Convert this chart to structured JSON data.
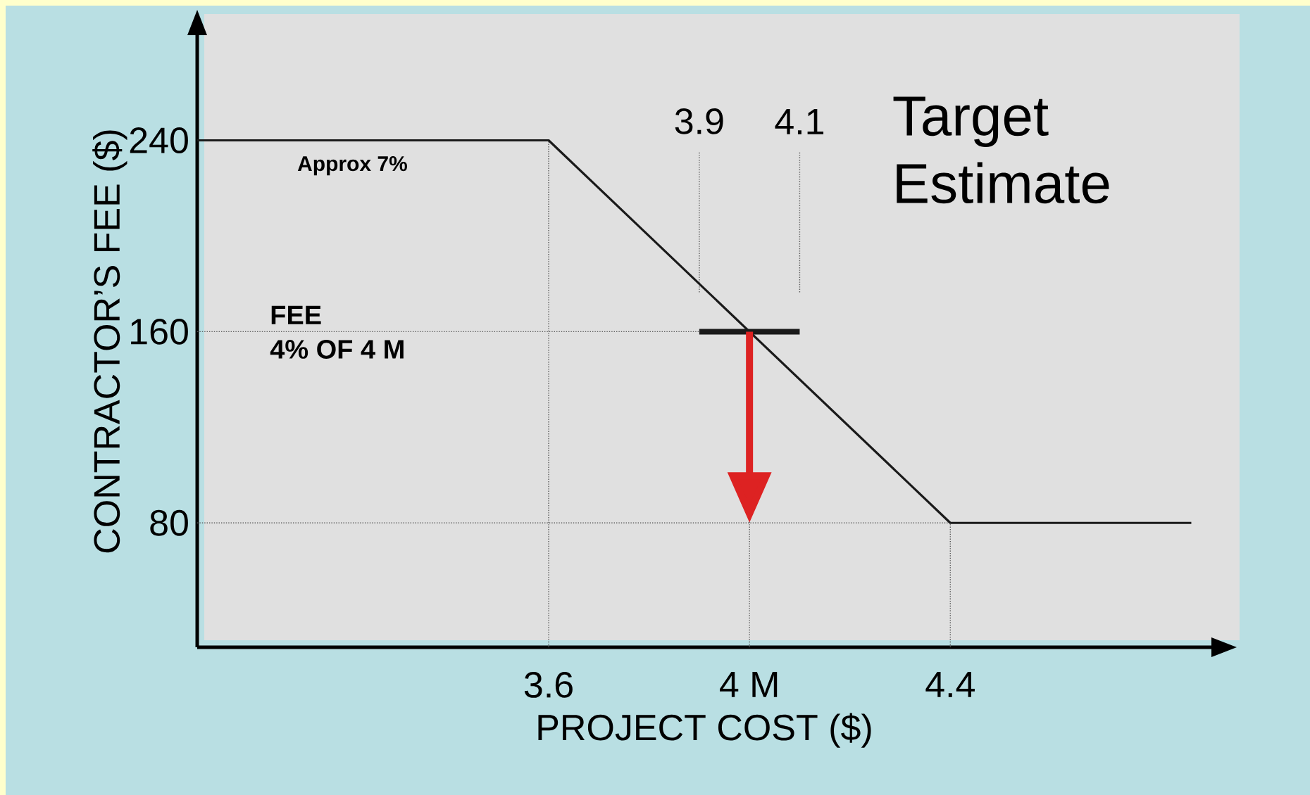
{
  "chart_data": {
    "type": "line",
    "title": "Target Estimate",
    "xlabel": "PROJECT COST ($)",
    "ylabel": "CONTRACTOR’S FEE ($)",
    "xlim": [
      2.9,
      4.92
    ],
    "ylim": [
      28,
      284
    ],
    "xticks": [
      3.6,
      {
        "value": 4,
        "label": "4 M"
      },
      4.4
    ],
    "yticks": [
      80,
      160,
      240
    ],
    "series": [
      {
        "x": [
          2.9,
          3.6,
          4.4,
          4.88
        ],
        "values": [
          240,
          240,
          80,
          80
        ],
        "color": "#1a1a1a"
      },
      {
        "x": [
          3.9,
          4.1
        ],
        "values": [
          160,
          160
        ],
        "color": "#1a1a1a"
      }
    ],
    "ref_lines": [
      {
        "axis": "x",
        "value": 3.6
      },
      {
        "axis": "x",
        "value": 4
      },
      {
        "axis": "x",
        "value": 4.4
      },
      {
        "axis": "y",
        "value": 80
      },
      {
        "axis": "y",
        "value": 160
      },
      {
        "axis": "x",
        "value": 3.9,
        "label": "3.9"
      },
      {
        "axis": "x",
        "value": 4.1,
        "label": "4.1"
      }
    ],
    "annotations": [
      "Approx 7%",
      "FEE",
      "4% OF 4 M"
    ]
  }
}
